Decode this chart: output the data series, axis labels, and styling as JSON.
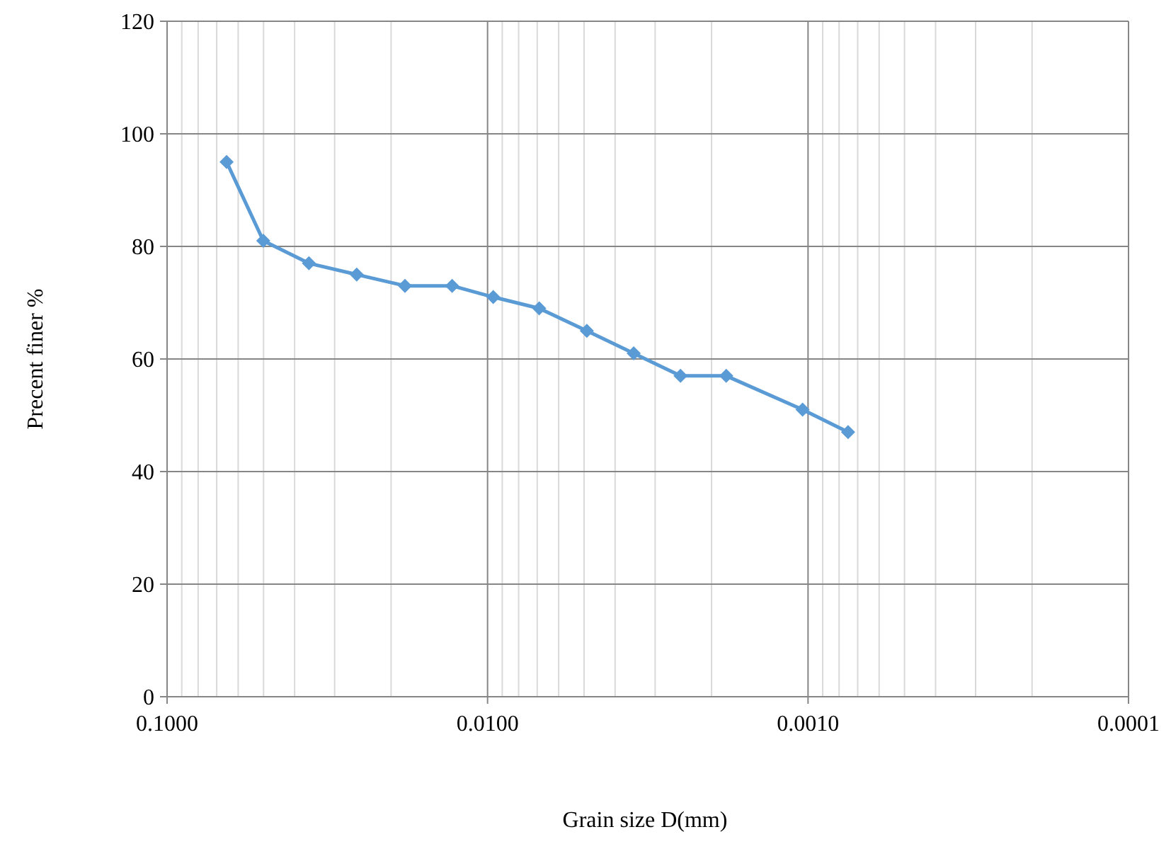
{
  "chart_data": {
    "type": "line",
    "xlabel": "Grain size D(mm)",
    "ylabel": "Precent finer %",
    "log": "x",
    "xlim": [
      0.1,
      0.0001
    ],
    "xticks": [
      {
        "value": 0.1,
        "label": "0.1000"
      },
      {
        "value": 0.01,
        "label": "0.0100"
      },
      {
        "value": 0.001,
        "label": "0.0010"
      },
      {
        "value": 0.0001,
        "label": "0.0001"
      }
    ],
    "ylim": [
      0,
      120
    ],
    "yticks": [
      0,
      20,
      40,
      60,
      80,
      100,
      120
    ],
    "grid": true,
    "marker": "diamond",
    "line_style": "solid",
    "x": [
      0.0652,
      0.0501,
      0.0361,
      0.0256,
      0.0181,
      0.0129,
      0.0096,
      0.0069,
      0.0049,
      0.0035,
      0.0025,
      0.0018,
      0.00104,
      0.00075
    ],
    "series": [
      {
        "color": "#5b9bd5",
        "values": [
          95,
          81,
          77,
          75,
          73,
          73,
          71,
          69,
          65,
          61,
          57,
          57,
          51,
          47
        ]
      }
    ]
  }
}
